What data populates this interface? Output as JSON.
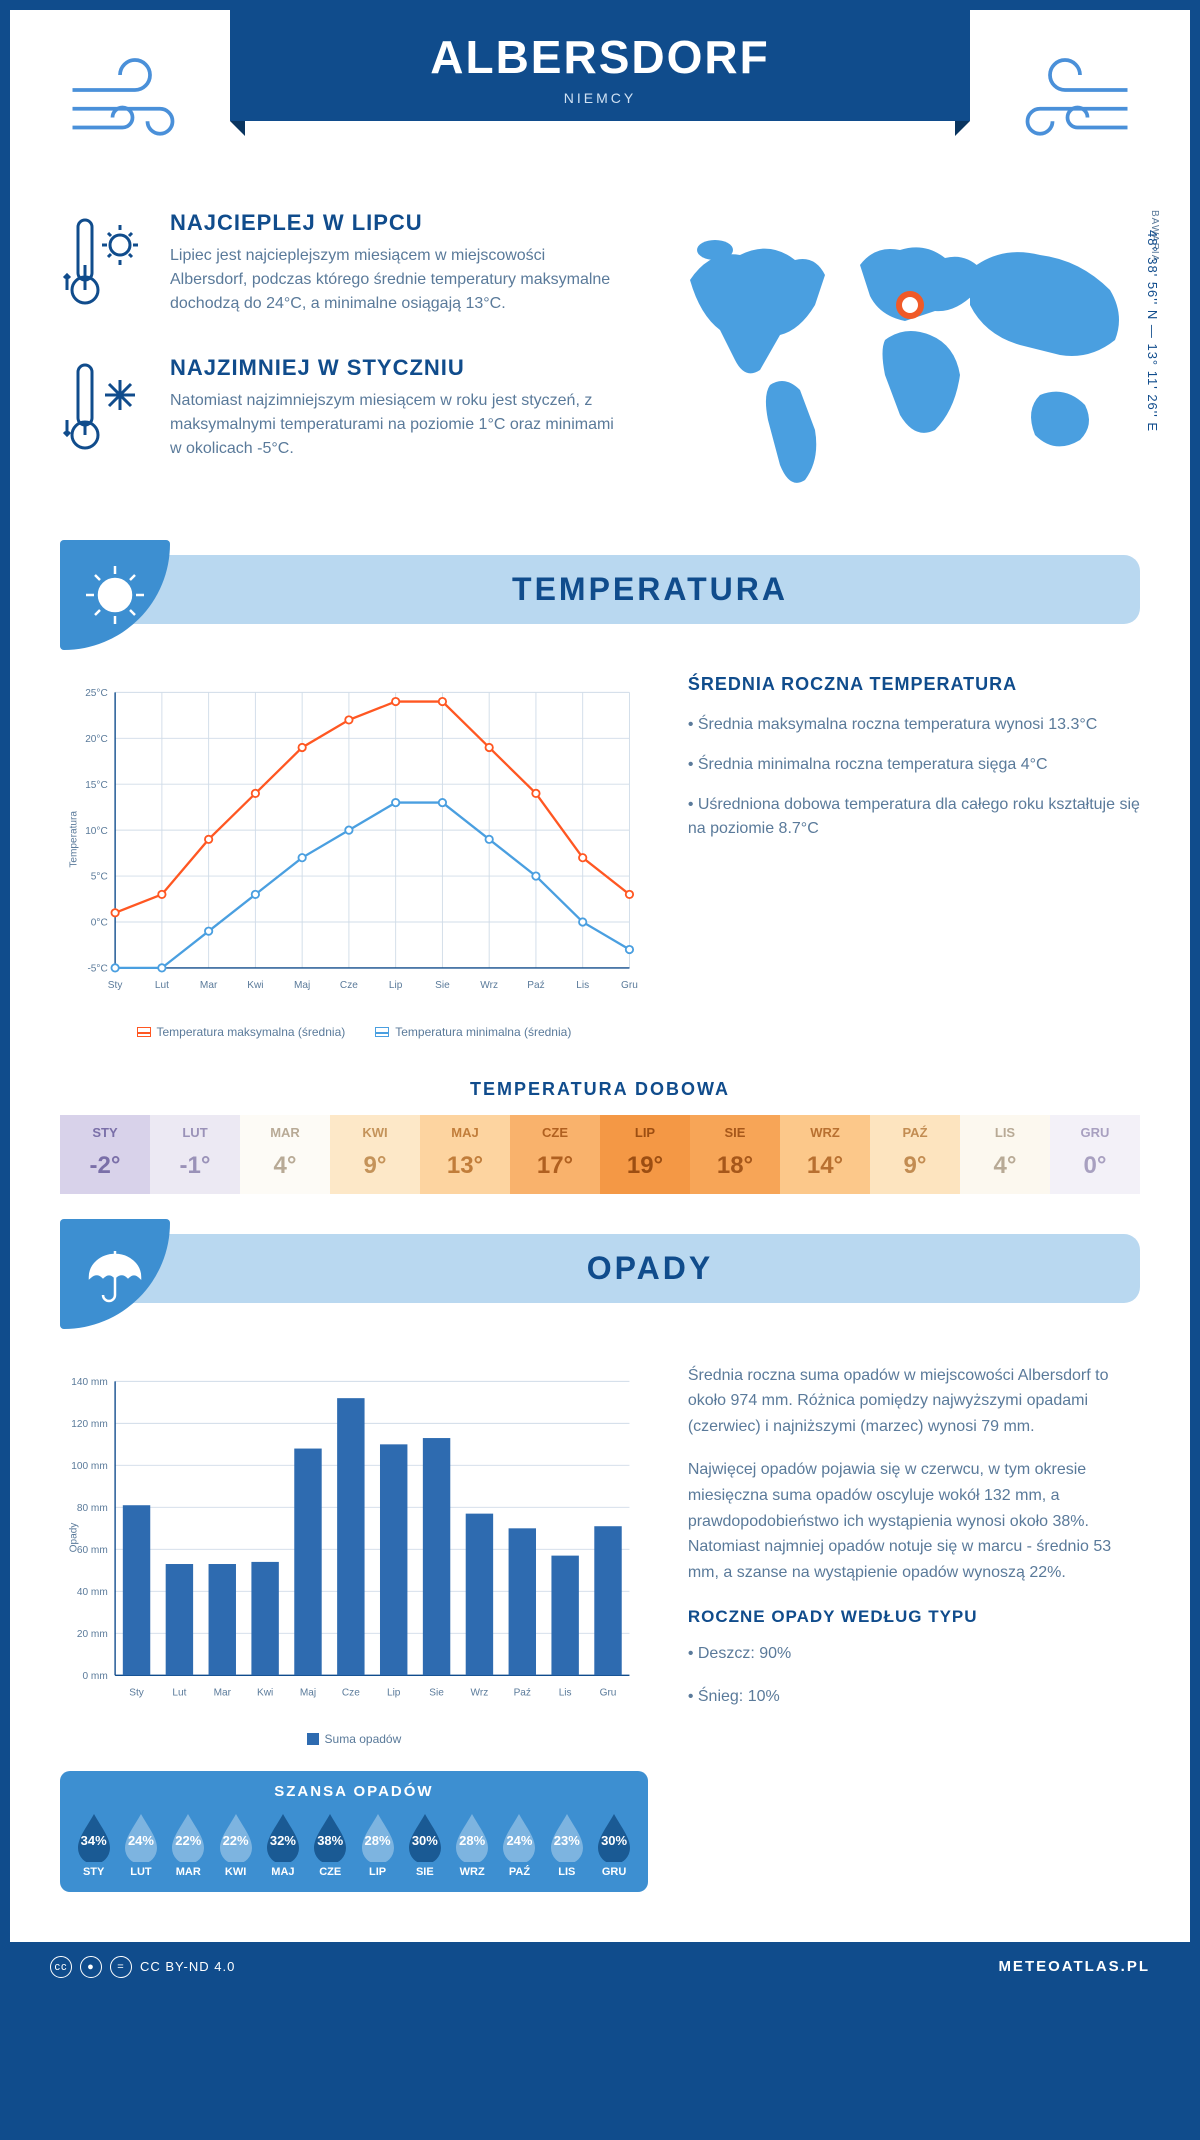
{
  "header": {
    "title": "ALBERSDORF",
    "subtitle": "NIEMCY"
  },
  "coords": "48° 38' 56'' N — 13° 11' 26'' E",
  "region": "BAWARIA",
  "facts": {
    "warmest": {
      "title": "NAJCIEPLEJ W LIPCU",
      "text": "Lipiec jest najcieplejszym miesiącem w miejscowości Albersdorf, podczas którego średnie temperatury maksymalne dochodzą do 24°C, a minimalne osiągają 13°C."
    },
    "coldest": {
      "title": "NAJZIMNIEJ W STYCZNIU",
      "text": "Natomiast najzimniejszym miesiącem w roku jest styczeń, z maksymalnymi temperaturami na poziomie 1°C oraz minimami w okolicach -5°C."
    }
  },
  "sections": {
    "temperature": "TEMPERATURA",
    "precip": "OPADY"
  },
  "months_short": [
    "Sty",
    "Lut",
    "Mar",
    "Kwi",
    "Maj",
    "Cze",
    "Lip",
    "Sie",
    "Wrz",
    "Paź",
    "Lis",
    "Gru"
  ],
  "months_upper": [
    "STY",
    "LUT",
    "MAR",
    "KWI",
    "MAJ",
    "CZE",
    "LIP",
    "SIE",
    "WRZ",
    "PAŹ",
    "LIS",
    "GRU"
  ],
  "temp_chart": {
    "type": "line",
    "y_label": "Temperatura",
    "y_ticks": [
      "-5°C",
      "0°C",
      "5°C",
      "10°C",
      "15°C",
      "20°C",
      "25°C"
    ],
    "y_min": -5,
    "y_max": 25,
    "series_max": {
      "label": "Temperatura maksymalna (średnia)",
      "color": "#ff5722",
      "values": [
        1,
        3,
        9,
        14,
        19,
        22,
        24,
        24,
        19,
        14,
        7,
        3
      ]
    },
    "series_min": {
      "label": "Temperatura minimalna (średnia)",
      "color": "#4a9fe0",
      "values": [
        -5,
        -5,
        -1,
        3,
        7,
        10,
        13,
        13,
        9,
        5,
        0,
        -3
      ]
    },
    "grid_color": "#d0dce8"
  },
  "temp_summary": {
    "title": "ŚREDNIA ROCZNA TEMPERATURA",
    "p1": "• Średnia maksymalna roczna temperatura wynosi 13.3°C",
    "p2": "• Średnia minimalna roczna temperatura sięga 4°C",
    "p3": "• Uśredniona dobowa temperatura dla całego roku kształtuje się na poziomie 8.7°C"
  },
  "daily": {
    "title": "TEMPERATURA DOBOWA",
    "values": [
      -2,
      -1,
      4,
      9,
      13,
      17,
      19,
      18,
      14,
      9,
      4,
      0
    ],
    "cell_colors": [
      "#d8d2ea",
      "#ece9f3",
      "#fdfbf6",
      "#fde8c8",
      "#fdd4a0",
      "#f9b26c",
      "#f49845",
      "#f7a557",
      "#fcc88a",
      "#fde4bf",
      "#fcf8ef",
      "#f3f1f8"
    ],
    "text_colors": [
      "#7a6fa8",
      "#9a92b8",
      "#b8aa96",
      "#c4935a",
      "#c17d3a",
      "#b06020",
      "#9c4e12",
      "#a6571a",
      "#b87030",
      "#c28c52",
      "#b8aa96",
      "#a8a0c0"
    ]
  },
  "precip_chart": {
    "type": "bar",
    "y_label": "Opady",
    "y_ticks": [
      0,
      20,
      40,
      60,
      80,
      100,
      120,
      140
    ],
    "y_max": 140,
    "values": [
      81,
      53,
      53,
      54,
      108,
      132,
      110,
      113,
      77,
      70,
      57,
      71
    ],
    "bar_color": "#2e6bb0",
    "legend": "Suma opadów"
  },
  "precip_text": {
    "p1": "Średnia roczna suma opadów w miejscowości Albersdorf to około 974 mm. Różnica pomiędzy najwyższymi opadami (czerwiec) i najniższymi (marzec) wynosi 79 mm.",
    "p2": "Najwięcej opadów pojawia się w czerwcu, w tym okresie miesięczna suma opadów oscyluje wokół 132 mm, a prawdopodobieństwo ich wystąpienia wynosi około 38%. Natomiast najmniej opadów notuje się w marcu - średnio 53 mm, a szanse na wystąpienie opadów wynoszą 22%.",
    "type_title": "ROCZNE OPADY WEDŁUG TYPU",
    "type1": "• Deszcz: 90%",
    "type2": "• Śnieg: 10%"
  },
  "chance": {
    "title": "SZANSA OPADÓW",
    "values": [
      34,
      24,
      22,
      22,
      32,
      38,
      28,
      30,
      28,
      24,
      23,
      30
    ],
    "drop_dark": "#1a5a94",
    "drop_light": "#7db4e0"
  },
  "footer": {
    "license": "CC BY-ND 4.0",
    "site": "METEOATLAS.PL"
  }
}
